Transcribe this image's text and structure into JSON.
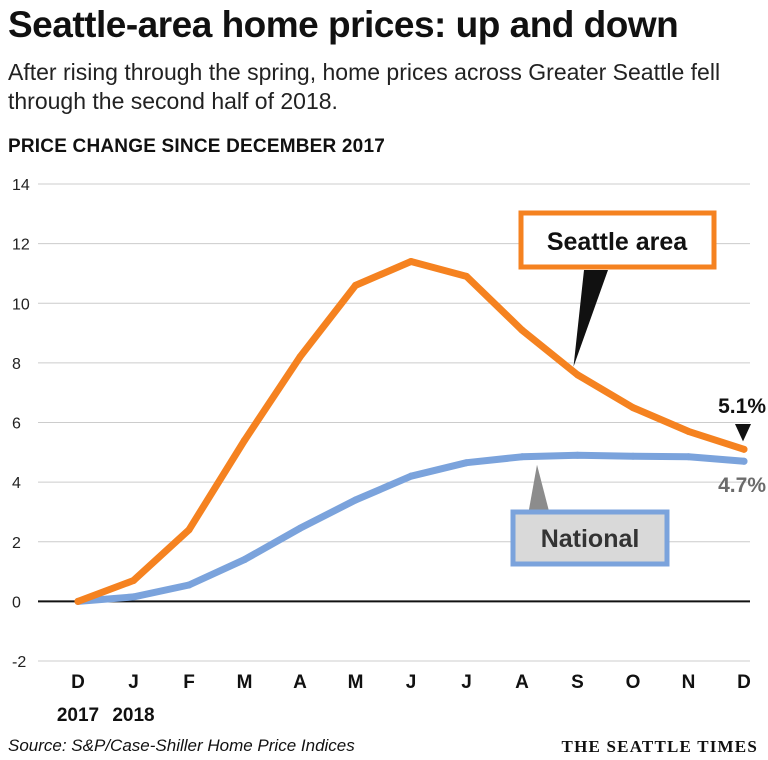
{
  "header": {
    "title": "Seattle-area home prices: up and down",
    "subtitle": "After rising through the spring, home prices across Greater Seattle fell through the second half of 2018.",
    "axis_title": "PRICE CHANGE SINCE DECEMBER 2017"
  },
  "footer": {
    "source": "Source: S&P/Case-Shiller Home Price Indices",
    "brand": "THE SEATTLE TIMES"
  },
  "colors": {
    "seattle": "#f58220",
    "national": "#7ba3dc",
    "callout_bg": "#d9d9d9",
    "axis": "#111111",
    "grid": "#cccccc"
  },
  "chart_data": {
    "type": "line",
    "categories": [
      "D",
      "J",
      "F",
      "M",
      "A",
      "M",
      "J",
      "J",
      "A",
      "S",
      "O",
      "N",
      "D"
    ],
    "year_labels": [
      {
        "index": 0,
        "label": "2017"
      },
      {
        "index": 1,
        "label": "2018"
      }
    ],
    "ylim": [
      -2,
      14
    ],
    "yticks": [
      -2,
      0,
      2,
      4,
      6,
      8,
      10,
      12,
      14
    ],
    "grid": true,
    "series": [
      {
        "name": "Seattle area",
        "color": "#f58220",
        "values": [
          0,
          0.7,
          2.4,
          5.4,
          8.2,
          10.6,
          11.4,
          10.9,
          9.1,
          7.6,
          6.5,
          5.7,
          5.1
        ],
        "end_label": "5.1%"
      },
      {
        "name": "National",
        "color": "#7ba3dc",
        "values": [
          0,
          0.15,
          0.55,
          1.4,
          2.45,
          3.4,
          4.2,
          4.65,
          4.85,
          4.9,
          4.87,
          4.85,
          4.7
        ],
        "end_label": "4.7%"
      }
    ]
  }
}
